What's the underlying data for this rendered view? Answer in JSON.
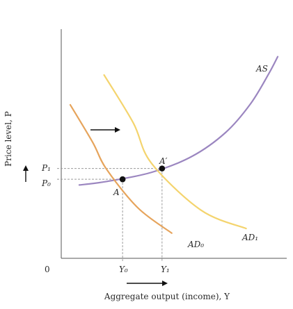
{
  "chart_data": {
    "type": "line",
    "xlabel": "Aggregate output (income), Y",
    "ylabel": "Price level, P",
    "origin_label": "0",
    "xlim": [
      0,
      100
    ],
    "ylim": [
      0,
      100
    ],
    "series": [
      {
        "name": "AS",
        "color": "#9b86c0",
        "points": [
          [
            8,
            32
          ],
          [
            20,
            33.5
          ],
          [
            40,
            37.5
          ],
          [
            58,
            44.5
          ],
          [
            73,
            55
          ],
          [
            84,
            67.5
          ],
          [
            92,
            80.5
          ],
          [
            96,
            88
          ]
        ]
      },
      {
        "name": "AD0",
        "color": "#e6a45c",
        "points": [
          [
            4,
            67
          ],
          [
            14,
            50.5
          ],
          [
            20,
            39
          ],
          [
            34,
            22
          ],
          [
            49,
            11
          ]
        ]
      },
      {
        "name": "AD1",
        "color": "#f4d46e",
        "points": [
          [
            19,
            80
          ],
          [
            32,
            59
          ],
          [
            40,
            41.5
          ],
          [
            62,
            21
          ],
          [
            82,
            13
          ]
        ]
      }
    ],
    "equilibria": [
      {
        "label": "A",
        "x": 27.2,
        "y": 34.5
      },
      {
        "label": "A′",
        "x": 44.7,
        "y": 39.2
      }
    ],
    "price_labels": {
      "p0": "P₀",
      "p1": "P₁"
    },
    "output_labels": {
      "y0": "Y₀",
      "y1": "Y₁"
    },
    "curve_labels": {
      "as": "AS",
      "ad0": "AD₀",
      "ad1": "AD₁"
    },
    "shift_arrows": [
      "horizontal right shift of AD",
      "price level up",
      "output right"
    ],
    "colors": {
      "axis": "#555555",
      "guide": "#9a9a9a",
      "point": "#111111",
      "arrow": "#111111"
    }
  }
}
